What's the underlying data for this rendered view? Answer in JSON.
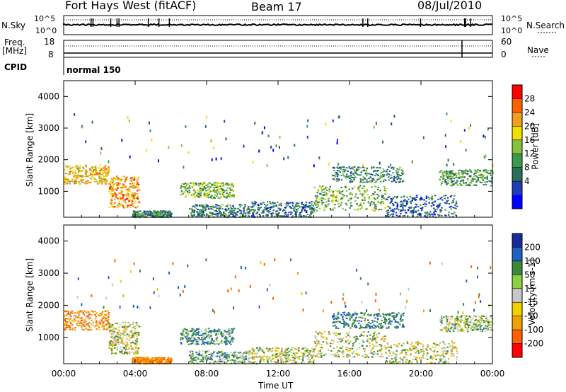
{
  "header": {
    "station": "Fort Hays West (fitACF)",
    "beam": "Beam 17",
    "date": "08/Jul/2010"
  },
  "top_strip": {
    "left_label": "N.Sky",
    "right_label": "N.Search",
    "left_ticks": [
      "10^5",
      "10^0"
    ],
    "right_ticks": [
      "10^5",
      "10^0"
    ]
  },
  "freq_strip": {
    "left_label_1": "Freq.",
    "left_label_2": "[MHz]",
    "right_label": "Nave",
    "left_ticks": [
      "18",
      "8"
    ],
    "right_ticks": [
      "60",
      "0"
    ]
  },
  "cpid": {
    "label": "CPID",
    "value": "normal 150"
  },
  "x_axis": {
    "label": "Time UT",
    "ticks": [
      "00:00",
      "04:00",
      "08:00",
      "12:00",
      "16:00",
      "20:00",
      "00:00"
    ]
  },
  "panels": {
    "power": {
      "ylabel": "Slant Range [km]",
      "yticks": [
        "4000",
        "3000",
        "2000",
        "1000"
      ],
      "colorbar_label": "Power [dB]",
      "colorbar_ticks": [
        "28",
        "24",
        "20",
        "16",
        "12",
        "8",
        "4"
      ],
      "colors": [
        "#0000ff",
        "#1e3fb4",
        "#2a6f5a",
        "#3a9a4a",
        "#88c040",
        "#f0e000",
        "#f0a020",
        "#ff6000",
        "#ff0000"
      ]
    },
    "velocity": {
      "ylabel": "Slant Range [km]",
      "yticks": [
        "4000",
        "3000",
        "2000",
        "1000"
      ],
      "colorbar_label": "Velocity [m s-1]",
      "colorbar_ticks": [
        "200",
        "100",
        "50",
        "15",
        "-15",
        "-50",
        "-100",
        "-200"
      ],
      "colors": [
        "#1a2a9a",
        "#2060c0",
        "#3a8a3a",
        "#8ad040",
        "#c8c8c8",
        "#f0d000",
        "#f0a000",
        "#ff6000",
        "#ff0000"
      ]
    }
  },
  "chart_data": [
    {
      "type": "heatmap",
      "title": "Power",
      "xlabel": "Time UT",
      "ylabel": "Slant Range [km]",
      "xlim": [
        0,
        24
      ],
      "ylim": [
        180,
        4500
      ],
      "colorbar_label": "Power [dB]",
      "clim": [
        0,
        30
      ],
      "scatter_clusters": [
        {
          "t_start": 0.0,
          "t_end": 2.5,
          "range_min": 1250,
          "range_max": 1850,
          "power": 20
        },
        {
          "t_start": 2.5,
          "t_end": 4.2,
          "range_min": 500,
          "range_max": 1500,
          "power": 22
        },
        {
          "t_start": 3.8,
          "t_end": 6.0,
          "range_min": 200,
          "range_max": 400,
          "power": 10
        },
        {
          "t_start": 6.5,
          "t_end": 9.5,
          "range_min": 800,
          "range_max": 1300,
          "power": 14
        },
        {
          "t_start": 7.0,
          "t_end": 10.5,
          "range_min": 200,
          "range_max": 600,
          "power": 9
        },
        {
          "t_start": 10.5,
          "t_end": 14.0,
          "range_min": 200,
          "range_max": 700,
          "power": 8
        },
        {
          "t_start": 14.0,
          "t_end": 18.0,
          "range_min": 400,
          "range_max": 1200,
          "power": 13
        },
        {
          "t_start": 15.0,
          "t_end": 19.0,
          "range_min": 1300,
          "range_max": 1800,
          "power": 10
        },
        {
          "t_start": 18.0,
          "t_end": 22.0,
          "range_min": 200,
          "range_max": 900,
          "power": 7
        },
        {
          "t_start": 21.0,
          "t_end": 24.0,
          "range_min": 1200,
          "range_max": 1700,
          "power": 11
        }
      ]
    },
    {
      "type": "heatmap",
      "title": "Velocity",
      "xlabel": "Time UT",
      "ylabel": "Slant Range [km]",
      "xlim": [
        0,
        24
      ],
      "ylim": [
        180,
        4500
      ],
      "colorbar_label": "Velocity [m s-1]",
      "clim": [
        -200,
        200
      ],
      "scatter_clusters": [
        {
          "t_start": 0.0,
          "t_end": 2.5,
          "range_min": 1250,
          "range_max": 1850,
          "velocity": -60
        },
        {
          "t_start": 2.5,
          "t_end": 4.2,
          "range_min": 500,
          "range_max": 1500,
          "velocity": 0
        },
        {
          "t_start": 3.8,
          "t_end": 6.0,
          "range_min": 200,
          "range_max": 400,
          "velocity": -80
        },
        {
          "t_start": 6.5,
          "t_end": 9.5,
          "range_min": 800,
          "range_max": 1300,
          "velocity": 60
        },
        {
          "t_start": 7.0,
          "t_end": 10.5,
          "range_min": 200,
          "range_max": 600,
          "velocity": 40
        },
        {
          "t_start": 10.5,
          "t_end": 14.0,
          "range_min": 200,
          "range_max": 700,
          "velocity": 5
        },
        {
          "t_start": 14.0,
          "t_end": 18.0,
          "range_min": 400,
          "range_max": 1200,
          "velocity": 0
        },
        {
          "t_start": 15.0,
          "t_end": 19.0,
          "range_min": 1300,
          "range_max": 1800,
          "velocity": 80
        },
        {
          "t_start": 18.0,
          "t_end": 22.0,
          "range_min": 200,
          "range_max": 900,
          "velocity": 0
        },
        {
          "t_start": 21.0,
          "t_end": 24.0,
          "range_min": 1200,
          "range_max": 1700,
          "velocity": 20
        }
      ]
    }
  ]
}
